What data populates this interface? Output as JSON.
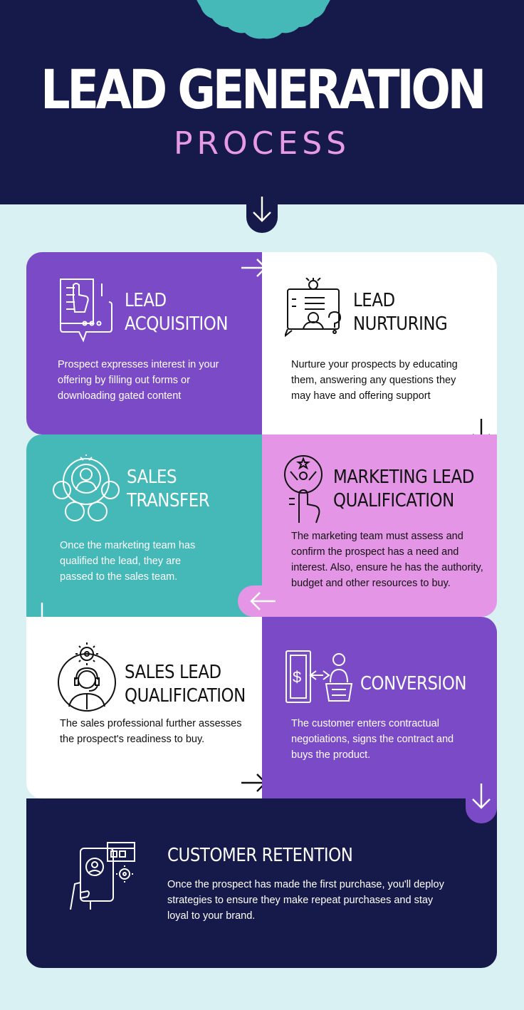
{
  "header": {
    "title": "LEAD GENERATION",
    "subtitle": "PROCESS"
  },
  "colors": {
    "navy": "#161a4b",
    "teal": "#45b8b8",
    "purple": "#7b4bc7",
    "pink": "#e495e6",
    "light_bg": "#d9f1f3",
    "white": "#ffffff",
    "subtitle": "#e79be6"
  },
  "steps": [
    {
      "title_lines": [
        "LEAD",
        "ACQUISITION"
      ],
      "text": "Prospect expresses interest in your offering by filling out forms or downloading gated content",
      "icon": "form-chat-icon"
    },
    {
      "title_lines": [
        "LEAD",
        "NURTURING"
      ],
      "text": "Nurture your prospects by educating them, answering any questions they may have and offering support",
      "icon": "presentation-support-icon"
    },
    {
      "title_lines": [
        "MARKETING LEAD",
        "QUALIFICATION"
      ],
      "text": "The marketing team must assess and confirm the prospect has a need and interest. Also, ensure he has the authority, budget and other resources to buy.",
      "icon": "hand-award-icon"
    },
    {
      "title_lines": [
        "SALES",
        "TRANSFER"
      ],
      "text": "Once the marketing team has qualified the lead, they are passed to the sales team.",
      "icon": "team-network-icon"
    },
    {
      "title_lines": [
        "SALES LEAD",
        "QUALIFICATION"
      ],
      "text": "The sales professional further assesses the prospect's readiness to buy.",
      "icon": "agent-gear-icon"
    },
    {
      "title_lines": [
        "CONVERSION"
      ],
      "text": "The customer enters contractual negotiations, signs the contract and buys the product.",
      "icon": "money-basket-icon"
    },
    {
      "title_lines": [
        "CUSTOMER RETENTION"
      ],
      "text": "Once the prospect has made the first purchase, you'll deploy strategies to ensure they make repeat purchases and stay loyal to your brand.",
      "icon": "phone-profile-icon"
    }
  ]
}
